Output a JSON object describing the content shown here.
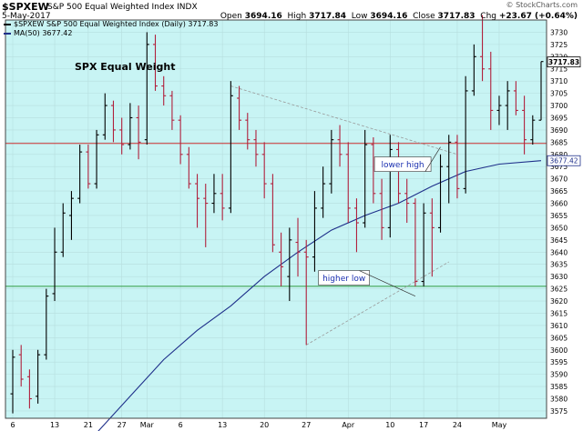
{
  "header": {
    "symbol": "$SPXEW",
    "title": "S&P 500 Equal Weighted Index INDX",
    "date": "5-May-2017",
    "open_label": "Open",
    "open": "3694.16",
    "high_label": "High",
    "high": "3717.84",
    "low_label": "Low",
    "low": "3694.16",
    "close_label": "Close",
    "close": "3717.83",
    "chg_label": "Chg",
    "chg": "+23.67 (+0.64%)",
    "watermark": "© StockCharts.com"
  },
  "legend": {
    "price_label": "$SPXEW S&P 500 Equal Weighted Index (Daily) 3717.83",
    "ma_label": "MA(50) 3677.42"
  },
  "colors": {
    "background": "#c8f4f4",
    "up_bar": "#000000",
    "down_bar": "#b0203c",
    "ma_line": "#1e2f8a",
    "resistance_line": "#cc3333",
    "support_line": "#2e9a3e",
    "trendline": "#999999"
  },
  "chart_data": {
    "type": "ohlc",
    "title": "SPX Equal Weight",
    "ylim": [
      3572,
      3735
    ],
    "y_ticks": [
      3575,
      3580,
      3585,
      3590,
      3595,
      3600,
      3605,
      3610,
      3615,
      3620,
      3625,
      3630,
      3635,
      3640,
      3645,
      3650,
      3655,
      3660,
      3665,
      3670,
      3675,
      3680,
      3685,
      3690,
      3695,
      3700,
      3705,
      3710,
      3715,
      3720,
      3725,
      3730
    ],
    "x_tick_labels": [
      {
        "label": "6",
        "index": 0
      },
      {
        "label": "13",
        "index": 5
      },
      {
        "label": "21",
        "index": 9
      },
      {
        "label": "27",
        "index": 13
      },
      {
        "label": "Mar",
        "index": 16
      },
      {
        "label": "6",
        "index": 20
      },
      {
        "label": "13",
        "index": 25
      },
      {
        "label": "20",
        "index": 30
      },
      {
        "label": "27",
        "index": 35
      },
      {
        "label": "Apr",
        "index": 40
      },
      {
        "label": "10",
        "index": 45
      },
      {
        "label": "17",
        "index": 49
      },
      {
        "label": "24",
        "index": 53
      },
      {
        "label": "May",
        "index": 58
      }
    ],
    "bars": [
      {
        "o": 3582,
        "h": 3600,
        "l": 3574,
        "c": 3597
      },
      {
        "o": 3598,
        "h": 3602,
        "l": 3585,
        "c": 3588
      },
      {
        "o": 3589,
        "h": 3592,
        "l": 3576,
        "c": 3580
      },
      {
        "o": 3581,
        "h": 3600,
        "l": 3578,
        "c": 3598
      },
      {
        "o": 3598,
        "h": 3625,
        "l": 3596,
        "c": 3622
      },
      {
        "o": 3623,
        "h": 3650,
        "l": 3620,
        "c": 3640
      },
      {
        "o": 3640,
        "h": 3660,
        "l": 3638,
        "c": 3656
      },
      {
        "o": 3655,
        "h": 3665,
        "l": 3645,
        "c": 3662
      },
      {
        "o": 3662,
        "h": 3684,
        "l": 3660,
        "c": 3681
      },
      {
        "o": 3681,
        "h": 3684,
        "l": 3666,
        "c": 3668
      },
      {
        "o": 3668,
        "h": 3690,
        "l": 3666,
        "c": 3688
      },
      {
        "o": 3688,
        "h": 3705,
        "l": 3686,
        "c": 3700
      },
      {
        "o": 3700,
        "h": 3702,
        "l": 3685,
        "c": 3690
      },
      {
        "o": 3690,
        "h": 3695,
        "l": 3680,
        "c": 3684
      },
      {
        "o": 3684,
        "h": 3701,
        "l": 3682,
        "c": 3695
      },
      {
        "o": 3695,
        "h": 3700,
        "l": 3678,
        "c": 3685
      },
      {
        "o": 3686,
        "h": 3730,
        "l": 3684,
        "c": 3725
      },
      {
        "o": 3725,
        "h": 3729,
        "l": 3706,
        "c": 3708
      },
      {
        "o": 3708,
        "h": 3712,
        "l": 3700,
        "c": 3704
      },
      {
        "o": 3704,
        "h": 3706,
        "l": 3690,
        "c": 3694
      },
      {
        "o": 3694,
        "h": 3696,
        "l": 3676,
        "c": 3680
      },
      {
        "o": 3680,
        "h": 3683,
        "l": 3666,
        "c": 3668
      },
      {
        "o": 3668,
        "h": 3672,
        "l": 3650,
        "c": 3662
      },
      {
        "o": 3662,
        "h": 3668,
        "l": 3642,
        "c": 3660
      },
      {
        "o": 3660,
        "h": 3672,
        "l": 3656,
        "c": 3664
      },
      {
        "o": 3664,
        "h": 3672,
        "l": 3653,
        "c": 3658
      },
      {
        "o": 3658,
        "h": 3710,
        "l": 3656,
        "c": 3704
      },
      {
        "o": 3703,
        "h": 3708,
        "l": 3690,
        "c": 3694
      },
      {
        "o": 3694,
        "h": 3697,
        "l": 3682,
        "c": 3686
      },
      {
        "o": 3686,
        "h": 3690,
        "l": 3675,
        "c": 3680
      },
      {
        "o": 3680,
        "h": 3685,
        "l": 3662,
        "c": 3668
      },
      {
        "o": 3668,
        "h": 3672,
        "l": 3640,
        "c": 3643
      },
      {
        "o": 3640,
        "h": 3648,
        "l": 3626,
        "c": 3634
      },
      {
        "o": 3630,
        "h": 3650,
        "l": 3620,
        "c": 3645
      },
      {
        "o": 3644,
        "h": 3654,
        "l": 3630,
        "c": 3640
      },
      {
        "o": 3640,
        "h": 3645,
        "l": 3602,
        "c": 3638
      },
      {
        "o": 3638,
        "h": 3665,
        "l": 3632,
        "c": 3658
      },
      {
        "o": 3658,
        "h": 3675,
        "l": 3654,
        "c": 3668
      },
      {
        "o": 3668,
        "h": 3690,
        "l": 3664,
        "c": 3686
      },
      {
        "o": 3686,
        "h": 3692,
        "l": 3675,
        "c": 3680
      },
      {
        "o": 3680,
        "h": 3685,
        "l": 3652,
        "c": 3658
      },
      {
        "o": 3658,
        "h": 3662,
        "l": 3640,
        "c": 3652
      },
      {
        "o": 3652,
        "h": 3690,
        "l": 3650,
        "c": 3684
      },
      {
        "o": 3684,
        "h": 3687,
        "l": 3660,
        "c": 3664
      },
      {
        "o": 3664,
        "h": 3670,
        "l": 3645,
        "c": 3650
      },
      {
        "o": 3650,
        "h": 3688,
        "l": 3646,
        "c": 3682
      },
      {
        "o": 3682,
        "h": 3685,
        "l": 3660,
        "c": 3664
      },
      {
        "o": 3664,
        "h": 3670,
        "l": 3652,
        "c": 3660
      },
      {
        "o": 3660,
        "h": 3662,
        "l": 3626,
        "c": 3628
      },
      {
        "o": 3628,
        "h": 3660,
        "l": 3626,
        "c": 3656
      },
      {
        "o": 3656,
        "h": 3662,
        "l": 3630,
        "c": 3650
      },
      {
        "o": 3650,
        "h": 3680,
        "l": 3648,
        "c": 3675
      },
      {
        "o": 3675,
        "h": 3688,
        "l": 3660,
        "c": 3685
      },
      {
        "o": 3685,
        "h": 3688,
        "l": 3662,
        "c": 3666
      },
      {
        "o": 3666,
        "h": 3712,
        "l": 3664,
        "c": 3706
      },
      {
        "o": 3706,
        "h": 3725,
        "l": 3704,
        "c": 3720
      },
      {
        "o": 3720,
        "h": 3737,
        "l": 3710,
        "c": 3715
      },
      {
        "o": 3715,
        "h": 3722,
        "l": 3690,
        "c": 3698
      },
      {
        "o": 3698,
        "h": 3704,
        "l": 3692,
        "c": 3700
      },
      {
        "o": 3700,
        "h": 3710,
        "l": 3690,
        "c": 3706
      },
      {
        "o": 3706,
        "h": 3710,
        "l": 3696,
        "c": 3698
      },
      {
        "o": 3698,
        "h": 3704,
        "l": 3680,
        "c": 3686
      },
      {
        "o": 3686,
        "h": 3696,
        "l": 3684,
        "c": 3694
      },
      {
        "o": 3694,
        "h": 3718,
        "l": 3694,
        "c": 3718
      }
    ],
    "ma50": [
      {
        "i": 10,
        "v": 3566
      },
      {
        "i": 14,
        "v": 3581
      },
      {
        "i": 18,
        "v": 3596
      },
      {
        "i": 22,
        "v": 3608
      },
      {
        "i": 26,
        "v": 3618
      },
      {
        "i": 30,
        "v": 3630
      },
      {
        "i": 34,
        "v": 3640
      },
      {
        "i": 38,
        "v": 3649
      },
      {
        "i": 42,
        "v": 3655
      },
      {
        "i": 46,
        "v": 3660
      },
      {
        "i": 50,
        "v": 3667
      },
      {
        "i": 54,
        "v": 3673
      },
      {
        "i": 58,
        "v": 3676
      },
      {
        "i": 63,
        "v": 3677.42
      }
    ],
    "horizontal_lines": [
      {
        "name": "resistance",
        "value": 3684.5
      },
      {
        "name": "support",
        "value": 3626
      }
    ],
    "trendlines": [
      {
        "name": "upper",
        "i1": 26,
        "v1": 3708,
        "i2": 53,
        "v2": 3680
      },
      {
        "name": "lower",
        "i1": 35,
        "v1": 3602,
        "i2": 52,
        "v2": 3636
      }
    ],
    "annotations": [
      {
        "text": "lower high",
        "target_index": 51,
        "target_value": 3683
      },
      {
        "text": "higher low",
        "target_index": 48,
        "target_value": 3622
      }
    ],
    "last_value_tags": [
      {
        "text": "3717.83",
        "value": 3717.83
      },
      {
        "text": "3677.42",
        "value": 3677.42
      }
    ]
  }
}
